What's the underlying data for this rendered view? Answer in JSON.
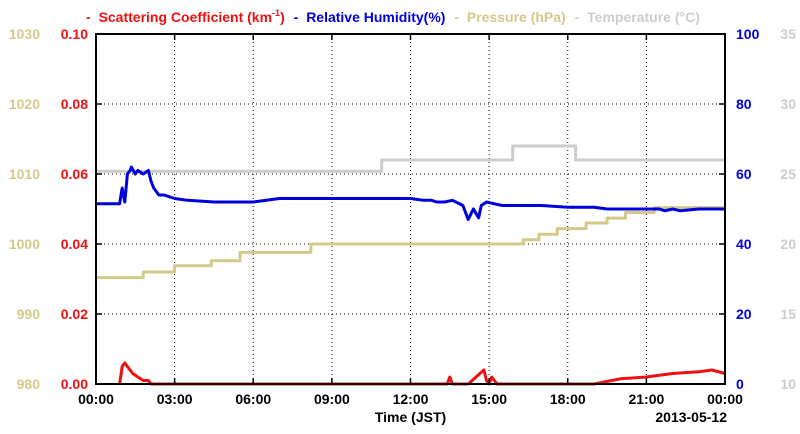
{
  "chart_data": {
    "type": "line",
    "xlabel": "Time (JST)",
    "date_label": "2013-05-12",
    "x_ticks": [
      "00:00",
      "03:00",
      "06:00",
      "09:00",
      "12:00",
      "15:00",
      "18:00",
      "21:00",
      "00:00"
    ],
    "xlim_hours": [
      0,
      24
    ],
    "grid": true,
    "legend_position": "top",
    "colors": {
      "scattering": "#ee1111",
      "humidity": "#0000dd",
      "pressure": "#d2c98a",
      "temperature": "#cccccc"
    },
    "axes": {
      "left_outer": {
        "name": "Pressure",
        "ylim": [
          980,
          1030
        ],
        "ticks": [
          "980",
          "990",
          "1000",
          "1010",
          "1020",
          "1030"
        ]
      },
      "left_inner": {
        "name": "Scattering Coefficient",
        "ylim": [
          0,
          0.1
        ],
        "ticks": [
          "0.00",
          "0.02",
          "0.04",
          "0.06",
          "0.08",
          "0.10"
        ]
      },
      "right_inner": {
        "name": "Relative Humidity",
        "ylim": [
          0,
          100
        ],
        "ticks": [
          "0",
          "20",
          "40",
          "60",
          "80",
          "100"
        ]
      },
      "right_outer": {
        "name": "Temperature",
        "ylim": [
          10,
          35
        ],
        "ticks": [
          "10",
          "15",
          "20",
          "25",
          "30",
          "35"
        ]
      }
    },
    "legend": {
      "scattering": {
        "prefix": "-",
        "text": "Scattering Coefficient (km",
        "sup": "-1",
        "suffix": ")"
      },
      "humidity": {
        "prefix": "-",
        "text": "Relative Humidity(%)"
      },
      "pressure": {
        "prefix": "-",
        "text": "Pressure (hPa)"
      },
      "temperature": {
        "prefix": "-",
        "text": "Temperature (°C)"
      }
    },
    "series": [
      {
        "key": "temperature",
        "axis": "right_outer",
        "step": true,
        "x": [
          0,
          10.4,
          10.9,
          12.6,
          15.9,
          18.3,
          24
        ],
        "y": [
          25.2,
          25.2,
          26.0,
          26.0,
          27.0,
          26.0,
          26.0
        ]
      },
      {
        "key": "pressure",
        "axis": "left_outer",
        "step": true,
        "x": [
          0,
          1.8,
          3.0,
          4.4,
          5.5,
          8.2,
          15.2,
          16.3,
          16.9,
          17.6,
          18.7,
          19.5,
          20.2,
          21.3,
          24
        ],
        "y": [
          995.2,
          996.0,
          996.9,
          997.6,
          998.8,
          1000.0,
          1000.0,
          1000.6,
          1001.4,
          1002.2,
          1003.0,
          1003.7,
          1004.5,
          1005.2,
          1005.2
        ]
      },
      {
        "key": "humidity",
        "axis": "right_inner",
        "step": false,
        "x": [
          0,
          0.5,
          0.9,
          1.0,
          1.1,
          1.2,
          1.3,
          1.35,
          1.5,
          1.6,
          1.8,
          2.0,
          2.1,
          2.2,
          2.4,
          2.6,
          2.8,
          3.0,
          3.5,
          4.5,
          5.0,
          6.0,
          7.0,
          8.0,
          9.0,
          10.0,
          11.0,
          12.0,
          12.5,
          12.8,
          13.0,
          13.3,
          13.6,
          14.0,
          14.2,
          14.4,
          14.6,
          14.7,
          14.9,
          15.2,
          15.5,
          16.0,
          17.0,
          18.0,
          19.0,
          19.5,
          20.0,
          21.0,
          21.5,
          21.7,
          22.0,
          22.3,
          23.0,
          24.0
        ],
        "y": [
          51.5,
          51.5,
          51.5,
          56.0,
          52.0,
          60.0,
          61.0,
          62.0,
          60.0,
          61.0,
          60.0,
          61.0,
          58.0,
          56.0,
          54.0,
          54.0,
          53.5,
          53.0,
          52.5,
          52.0,
          52.0,
          52.0,
          53.0,
          53.0,
          53.0,
          53.0,
          53.0,
          53.0,
          52.5,
          52.5,
          52.0,
          52.0,
          52.5,
          51.0,
          47.0,
          50.0,
          47.5,
          51.0,
          52.0,
          51.5,
          51.0,
          51.0,
          51.0,
          50.5,
          50.5,
          50.0,
          50.0,
          50.0,
          50.0,
          49.5,
          50.0,
          49.5,
          50.0,
          50.0
        ]
      },
      {
        "key": "scattering",
        "axis": "left_inner",
        "step": false,
        "x": [
          0.9,
          1.0,
          1.1,
          1.2,
          1.4,
          1.6,
          1.8,
          2.0,
          2.1,
          2.3,
          13.4,
          13.5,
          13.6,
          14.2,
          14.8,
          14.9,
          15.0,
          15.1,
          15.3,
          15.6,
          19.0,
          20.0,
          21.0,
          22.0,
          23.0,
          23.5,
          24.0
        ],
        "y": [
          0.0,
          0.005,
          0.006,
          0.005,
          0.003,
          0.002,
          0.001,
          0.001,
          0.0,
          0.0,
          0.0,
          0.002,
          0.0,
          0.0,
          0.004,
          0.001,
          0.0,
          0.002,
          0.0,
          0.0,
          0.0,
          0.0015,
          0.002,
          0.003,
          0.0035,
          0.004,
          0.003
        ]
      }
    ]
  }
}
